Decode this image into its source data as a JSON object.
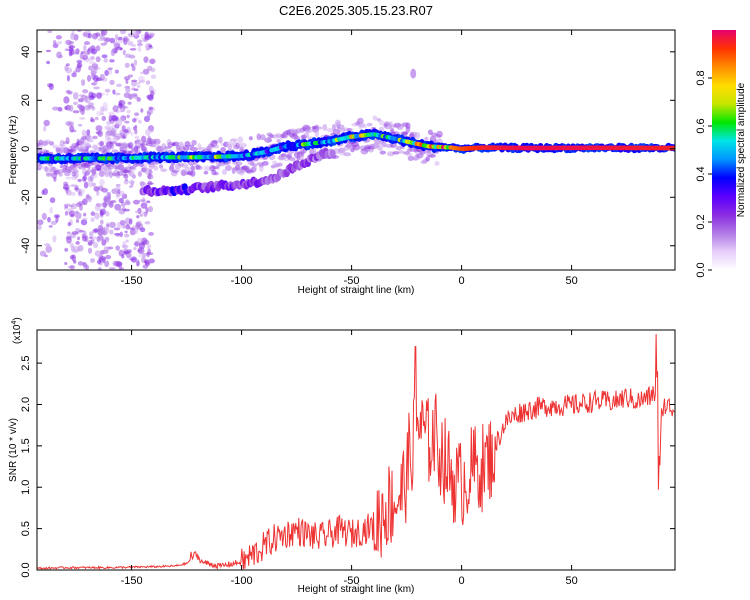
{
  "title": "C2E6.2025.305.15.23.R07",
  "chart_data": [
    {
      "type": "heatmap",
      "name": "spectrogram",
      "xlabel": "Height of straight line (km)",
      "ylabel": "Frequency (Hz)",
      "xlim": [
        -193,
        97
      ],
      "ylim": [
        -50,
        49
      ],
      "xticks": [
        -150,
        -100,
        -50,
        0,
        50
      ],
      "xtick_labels": [
        "-150",
        "-100",
        "-50",
        "0",
        "50"
      ],
      "yticks": [
        -40,
        -20,
        0,
        20,
        40
      ],
      "ytick_labels": [
        "-40",
        "-20",
        "0",
        "20",
        "40"
      ],
      "colorbar": {
        "label": "Normalized spectral amplitude",
        "range": [
          0,
          1
        ],
        "ticks": [
          0.0,
          0.2,
          0.4,
          0.6,
          0.8
        ],
        "tick_labels": [
          "0.0",
          "0.2",
          "0.4",
          "0.6",
          "0.8"
        ],
        "colors": [
          "#ffffff",
          "#e6cdfa",
          "#b07ae6",
          "#8a2be2",
          "#5a00ff",
          "#0000ff",
          "#0096ff",
          "#00e6e6",
          "#00e600",
          "#c8e600",
          "#ffdc00",
          "#ff8c00",
          "#ff3200",
          "#e6006e"
        ]
      },
      "main_ridge": {
        "points": [
          [
            -193,
            -4
          ],
          [
            -180,
            -4
          ],
          [
            -160,
            -4
          ],
          [
            -140,
            -3.5
          ],
          [
            -120,
            -3.5
          ],
          [
            -100,
            -3
          ],
          [
            -90,
            -1.5
          ],
          [
            -80,
            1
          ],
          [
            -70,
            2
          ],
          [
            -60,
            3
          ],
          [
            -50,
            5
          ],
          [
            -40,
            6
          ],
          [
            -32,
            4.5
          ],
          [
            -25,
            3
          ],
          [
            -15,
            1
          ],
          [
            -5,
            0.5
          ],
          [
            0,
            0
          ],
          [
            10,
            0.5
          ],
          [
            30,
            0.3
          ],
          [
            60,
            0.4
          ],
          [
            97,
            0.3
          ]
        ],
        "amplitudes": [
          0.5,
          0.45,
          0.5,
          0.45,
          0.6,
          0.5,
          0.4,
          0.45,
          0.55,
          0.5,
          0.65,
          0.6,
          0.55,
          0.65,
          0.75,
          0.85,
          0.9,
          0.95,
          0.98,
          0.97,
          0.95
        ]
      },
      "lower_ridge": {
        "points": [
          [
            -145,
            -17
          ],
          [
            -135,
            -17.5
          ],
          [
            -128,
            -17
          ],
          [
            -118,
            -16
          ],
          [
            -105,
            -15
          ],
          [
            -95,
            -14
          ],
          [
            -85,
            -12
          ],
          [
            -75,
            -7
          ],
          [
            -65,
            -3
          ],
          [
            -58,
            -1
          ]
        ],
        "amplitudes": [
          0.35,
          0.4,
          0.5,
          0.35,
          0.4,
          0.35,
          0.3,
          0.35,
          0.3,
          0.25
        ]
      },
      "scatter_band": {
        "x_range": [
          -180,
          -140
        ],
        "note": "sparse low-amplitude noise"
      }
    },
    {
      "type": "line",
      "name": "snr",
      "xlabel": "Height of straight line (km)",
      "ylabel": "SNR (10 * v/v)",
      "multiplier_label": "(x10",
      "multiplier_exp": "4",
      "xlim": [
        -193,
        97
      ],
      "ylim": [
        0,
        2.9
      ],
      "xticks": [
        -150,
        -100,
        -50,
        0,
        50
      ],
      "xtick_labels": [
        "-150",
        "-100",
        "-50",
        "0",
        "50"
      ],
      "yticks": [
        0.0,
        0.5,
        1.0,
        1.5,
        2.0,
        2.5
      ],
      "ytick_labels": [
        "0.0",
        "0.5",
        "1.0",
        "1.5",
        "2.0",
        "2.5"
      ],
      "color": "#ee3333",
      "series": [
        {
          "name": "SNR",
          "x": [
            -193,
            -180,
            -160,
            -140,
            -130,
            -125,
            -121,
            -118,
            -110,
            -100,
            -95,
            -90,
            -85,
            -80,
            -75,
            -70,
            -65,
            -60,
            -55,
            -50,
            -45,
            -40,
            -35,
            -30,
            -27,
            -25,
            -22,
            -20,
            -18,
            -15,
            -12,
            -10,
            -8,
            -5,
            -2,
            0,
            3,
            6,
            10,
            15,
            20,
            25,
            30,
            40,
            50,
            60,
            70,
            75,
            80,
            85,
            88,
            89,
            90,
            91,
            93,
            97
          ],
          "y": [
            0.02,
            0.03,
            0.03,
            0.04,
            0.05,
            0.08,
            0.2,
            0.1,
            0.05,
            0.1,
            0.2,
            0.3,
            0.4,
            0.45,
            0.5,
            0.45,
            0.4,
            0.45,
            0.5,
            0.45,
            0.5,
            0.55,
            0.8,
            0.9,
            1.0,
            1.2,
            1.6,
            1.9,
            1.7,
            1.6,
            1.7,
            1.5,
            1.4,
            1.2,
            1.1,
            1.1,
            1.2,
            1.3,
            1.3,
            1.5,
            1.8,
            1.9,
            1.95,
            2.0,
            2.0,
            2.05,
            2.05,
            2.1,
            2.05,
            2.1,
            2.15,
            2.5,
            1.1,
            2.0,
            2.0,
            1.95
          ]
        }
      ],
      "spikes": [
        [
          -21,
          2.7
        ],
        [
          88.5,
          2.85
        ],
        [
          89.5,
          0.97
        ],
        [
          -123,
          0.22
        ],
        [
          -24,
          1.9
        ],
        [
          -17,
          1.8
        ]
      ],
      "noise_amplitude": [
        {
          "x_range": [
            -193,
            -125
          ],
          "amp": 0.02
        },
        {
          "x_range": [
            -125,
            -100
          ],
          "amp": 0.06
        },
        {
          "x_range": [
            -100,
            -40
          ],
          "amp": 0.3
        },
        {
          "x_range": [
            -40,
            15
          ],
          "amp": 0.55
        },
        {
          "x_range": [
            15,
            97
          ],
          "amp": 0.22
        }
      ]
    }
  ]
}
